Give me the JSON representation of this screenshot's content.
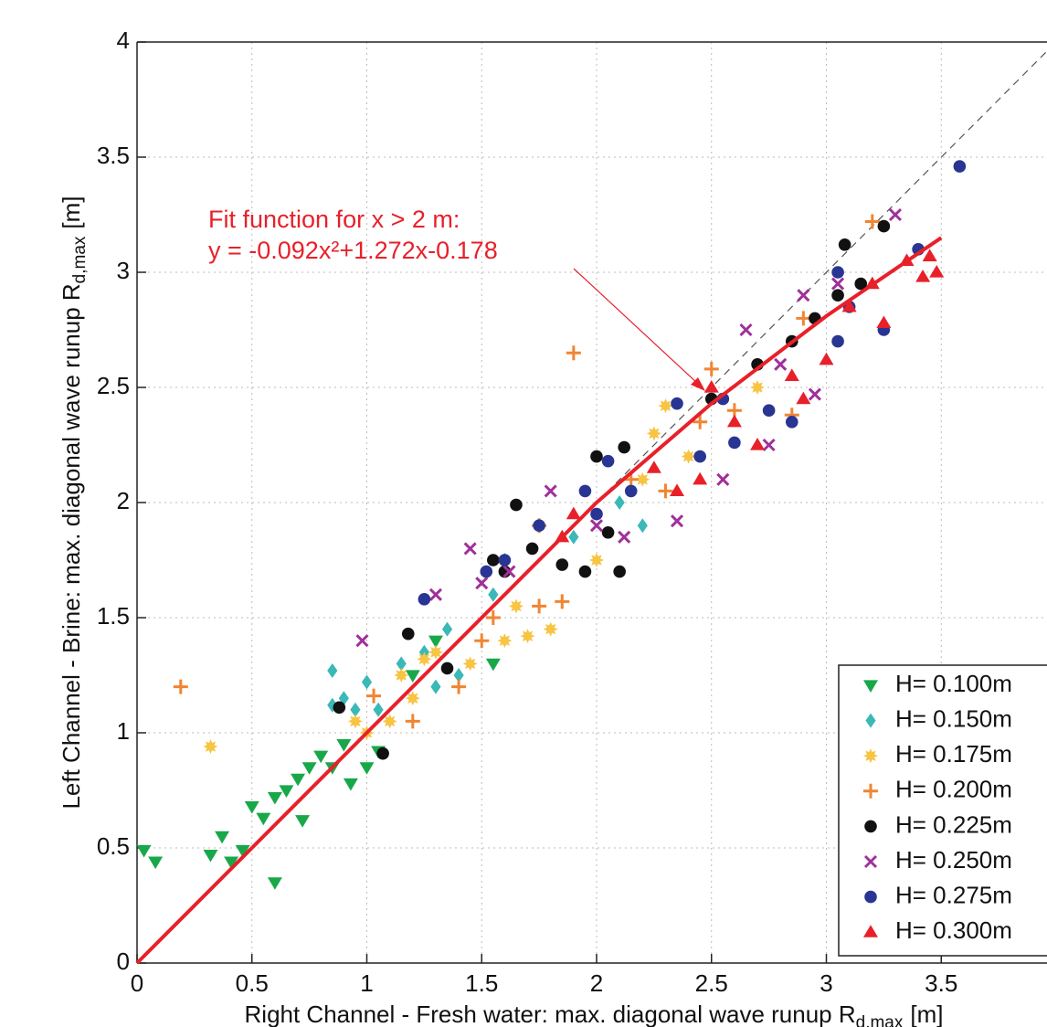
{
  "chart_data": {
    "type": "scatter",
    "xlabel": "Right Channel - Fresh water: max. diagonal wave runup R",
    "xlabel_sub": "d,max",
    "xlabel_unit": "[m]",
    "ylabel": "Left Channel - Brine: max. diagonal wave runup R",
    "ylabel_sub": "d,max",
    "ylabel_unit": "[m]",
    "annotation": [
      "Fit function for x > 2 m:",
      "y = -0.092x²+1.272x-0.178"
    ],
    "xlim": [
      0,
      4
    ],
    "ylim": [
      0,
      4
    ],
    "xticks": [
      0,
      0.5,
      1,
      1.5,
      2,
      2.5,
      3,
      3.5
    ],
    "yticks": [
      0,
      0.5,
      1,
      1.5,
      2,
      2.5,
      3,
      3.5,
      4
    ],
    "grid": true,
    "legend": "lower right",
    "fit": {
      "color": "#e8202a",
      "x": [
        0,
        0.5,
        1,
        1.5,
        2,
        2.5,
        3,
        3.5
      ],
      "values": [
        0,
        0.5,
        1.0,
        1.5,
        2.0,
        2.43,
        2.81,
        3.15
      ]
    },
    "series": [
      {
        "name": "H= 0.100m",
        "color": "#18a84a",
        "marker": "triangle-down",
        "x": [
          0.03,
          0.08,
          0.32,
          0.37,
          0.41,
          0.46,
          0.5,
          0.55,
          0.6,
          0.6,
          0.65,
          0.7,
          0.72,
          0.75,
          0.8,
          0.85,
          0.9,
          0.93,
          1.0,
          1.05,
          1.2,
          1.3,
          1.55
        ],
        "values": [
          0.49,
          0.44,
          0.47,
          0.55,
          0.44,
          0.49,
          0.68,
          0.63,
          0.35,
          0.72,
          0.75,
          0.8,
          0.62,
          0.85,
          0.9,
          0.85,
          0.95,
          0.78,
          0.85,
          0.92,
          1.25,
          1.4,
          1.3
        ]
      },
      {
        "name": "H= 0.150m",
        "color": "#3bb8b8",
        "marker": "diamond",
        "x": [
          0.85,
          0.9,
          0.95,
          0.85,
          1.0,
          1.05,
          1.15,
          1.25,
          1.3,
          1.35,
          1.4,
          1.55,
          1.6,
          1.9,
          2.1,
          2.2
        ],
        "values": [
          1.12,
          1.15,
          1.1,
          1.27,
          1.22,
          1.1,
          1.3,
          1.35,
          1.2,
          1.45,
          1.25,
          1.6,
          1.75,
          1.85,
          2.0,
          1.9
        ]
      },
      {
        "name": "H= 0.175m",
        "color": "#f7c443",
        "marker": "star",
        "x": [
          0.32,
          0.95,
          1.0,
          1.1,
          1.15,
          1.2,
          1.25,
          1.3,
          1.45,
          1.6,
          1.7,
          1.8,
          1.65,
          2.0,
          2.2,
          2.25,
          2.3,
          2.4,
          2.7
        ],
        "values": [
          0.94,
          1.05,
          1.0,
          1.05,
          1.25,
          1.15,
          1.32,
          1.35,
          1.3,
          1.4,
          1.42,
          1.45,
          1.55,
          1.75,
          2.1,
          2.3,
          2.42,
          2.2,
          2.5
        ]
      },
      {
        "name": "H= 0.200m",
        "color": "#f08532",
        "marker": "plus",
        "x": [
          0.19,
          1.03,
          1.2,
          1.4,
          1.5,
          1.55,
          1.75,
          1.85,
          1.75,
          1.9,
          2.15,
          2.3,
          2.5,
          2.45,
          2.6,
          2.85,
          3.2,
          2.9
        ],
        "values": [
          1.2,
          1.16,
          1.05,
          1.2,
          1.4,
          1.5,
          1.55,
          1.57,
          1.9,
          2.65,
          2.1,
          2.05,
          2.58,
          2.35,
          2.4,
          2.38,
          3.22,
          2.8
        ]
      },
      {
        "name": "H= 0.225m",
        "color": "#111111",
        "marker": "circle",
        "x": [
          0.88,
          1.07,
          1.18,
          1.35,
          1.55,
          1.6,
          1.65,
          1.72,
          1.85,
          1.95,
          2.0,
          2.05,
          2.1,
          2.12,
          2.5,
          2.7,
          2.85,
          2.95,
          3.05,
          3.08,
          3.15,
          3.25
        ],
        "values": [
          1.11,
          0.91,
          1.43,
          1.28,
          1.75,
          1.7,
          1.99,
          1.8,
          1.73,
          1.7,
          2.2,
          1.87,
          1.7,
          2.24,
          2.45,
          2.6,
          2.7,
          2.8,
          2.9,
          3.12,
          2.95,
          3.2
        ]
      },
      {
        "name": "H= 0.250m",
        "color": "#a0309a",
        "marker": "x",
        "x": [
          0.98,
          1.3,
          1.45,
          1.5,
          1.62,
          1.8,
          2.0,
          2.12,
          2.35,
          2.55,
          2.65,
          2.75,
          2.8,
          2.9,
          2.95,
          3.05,
          3.3
        ],
        "values": [
          1.4,
          1.6,
          1.8,
          1.65,
          1.7,
          2.05,
          1.9,
          1.85,
          1.92,
          2.1,
          2.75,
          2.25,
          2.6,
          2.9,
          2.47,
          2.95,
          3.25
        ]
      },
      {
        "name": "H= 0.275m",
        "color": "#283593",
        "marker": "circle",
        "x": [
          1.25,
          1.52,
          1.6,
          1.75,
          1.95,
          2.0,
          2.05,
          2.15,
          2.35,
          2.45,
          2.55,
          2.6,
          2.75,
          2.85,
          3.05,
          3.05,
          3.1,
          3.25,
          3.4,
          3.58
        ],
        "values": [
          1.58,
          1.7,
          1.75,
          1.9,
          2.05,
          1.95,
          2.18,
          2.05,
          2.43,
          2.2,
          2.45,
          2.26,
          2.4,
          2.35,
          2.7,
          3.0,
          2.85,
          2.75,
          3.1,
          3.46
        ]
      },
      {
        "name": "H= 0.300m",
        "color": "#e8202a",
        "marker": "triangle-up",
        "x": [
          1.85,
          1.9,
          2.25,
          2.35,
          2.45,
          2.5,
          2.6,
          2.7,
          2.85,
          2.9,
          3.0,
          3.1,
          3.2,
          3.25,
          3.35,
          3.42,
          3.48,
          3.45
        ],
        "values": [
          1.85,
          1.95,
          2.15,
          2.05,
          2.1,
          2.5,
          2.35,
          2.25,
          2.55,
          2.45,
          2.62,
          2.85,
          2.95,
          2.78,
          3.05,
          2.98,
          3.0,
          3.07
        ]
      }
    ]
  }
}
